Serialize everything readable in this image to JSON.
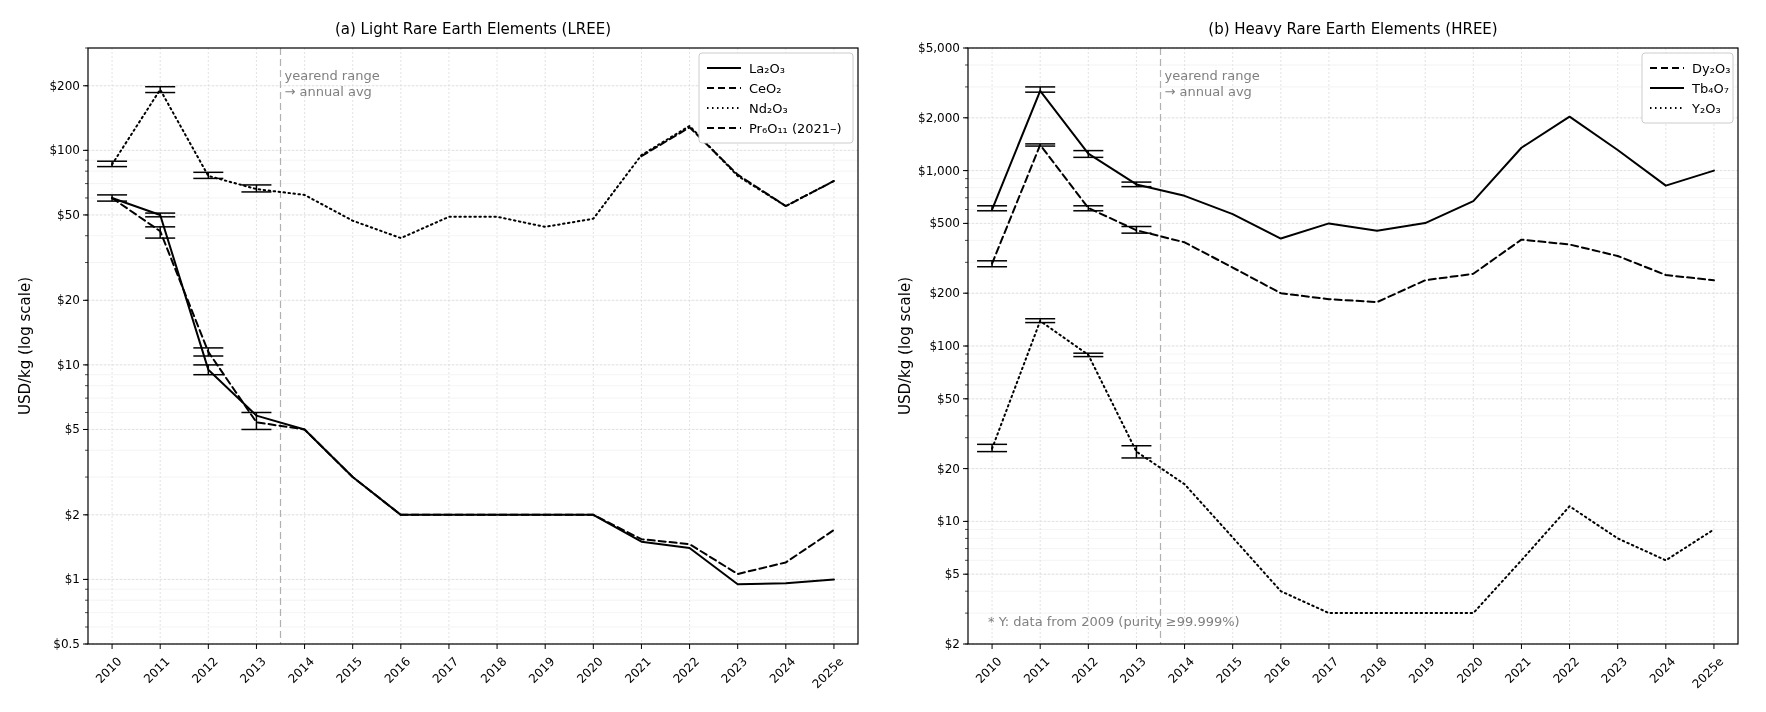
{
  "chart_data": [
    {
      "type": "line",
      "title": "(a) Light Rare Earth Elements (LREE)",
      "ylabel": "USD/kg (log scale)",
      "log": true,
      "grid": true,
      "legend": "top right",
      "x": [
        2010,
        2011,
        2012,
        2013,
        2014,
        2015,
        2016,
        2017,
        2018,
        2019,
        2020,
        2021,
        2022,
        2023,
        2024,
        2025
      ],
      "xlim": [
        2009.5,
        2025.5
      ],
      "xticks": [
        2010,
        2011,
        2012,
        2013,
        2014,
        2015,
        2016,
        2017,
        2018,
        2019,
        2020,
        2021,
        2022,
        2023,
        2024,
        {
          "value": 2025,
          "label": "2025e"
        }
      ],
      "ylim": [
        0.5,
        300
      ],
      "yticks": [
        {
          "value": 0.5,
          "label": "$0.5"
        },
        {
          "value": 1,
          "label": "$1"
        },
        {
          "value": 2,
          "label": "$2"
        },
        {
          "value": 5,
          "label": "$5"
        },
        {
          "value": 10,
          "label": "$10"
        },
        {
          "value": 20,
          "label": "$20"
        },
        {
          "value": 50,
          "label": "$50"
        },
        {
          "value": 100,
          "label": "$100"
        },
        {
          "value": 200,
          "label": "$200"
        }
      ],
      "ref_lines": [
        {
          "axis": "x",
          "value": 2013.5,
          "label": "yearend range\n→ annual avg",
          "color": "#b0b0b0",
          "line_style": "dashed"
        }
      ],
      "series": [
        {
          "name": "La₂O₃",
          "color": "#000000",
          "line_style": "solid",
          "values": [
            60,
            50,
            9.5,
            5.8,
            5,
            3,
            2,
            2,
            2,
            2,
            2,
            1.5,
            1.4,
            0.95,
            0.96,
            1.0
          ],
          "errors": [
            [
              58,
              62
            ],
            [
              49,
              51
            ],
            [
              9,
              10
            ],
            null,
            null,
            null,
            null,
            null,
            null,
            null,
            null,
            null,
            null,
            null,
            null,
            null
          ]
        },
        {
          "name": "CeO₂",
          "color": "#000000",
          "line_style": "dashed",
          "values": [
            60,
            42,
            11.5,
            5.4,
            5,
            3,
            2,
            2,
            2,
            2,
            2,
            1.54,
            1.46,
            1.06,
            1.2,
            1.7
          ],
          "errors": [
            null,
            [
              39,
              44
            ],
            [
              11,
              12
            ],
            [
              5,
              6
            ],
            null,
            null,
            null,
            null,
            null,
            null,
            null,
            null,
            null,
            null,
            null,
            null
          ]
        },
        {
          "name": "Nd₂O₃",
          "color": "#000000",
          "line_style": "dotted",
          "values": [
            86,
            192,
            76,
            66,
            62,
            47,
            39,
            49,
            49,
            44,
            48,
            95,
            130,
            76,
            55,
            72
          ],
          "errors": [
            [
              84,
              89
            ],
            [
              186,
              198
            ],
            [
              74,
              79
            ],
            [
              64,
              69
            ],
            null,
            null,
            null,
            null,
            null,
            null,
            null,
            null,
            null,
            null,
            null,
            null
          ]
        },
        {
          "name": "Pr₆O₁₁ (2021–)",
          "color": "#000000",
          "line_style": "dashed",
          "values": [
            null,
            null,
            null,
            null,
            null,
            null,
            null,
            null,
            null,
            null,
            null,
            94,
            128,
            77,
            55,
            72
          ]
        }
      ]
    },
    {
      "type": "line",
      "title": "(b) Heavy Rare Earth Elements (HREE)",
      "ylabel": "USD/kg (log scale)",
      "log": true,
      "grid": true,
      "legend": "top right",
      "x": [
        2010,
        2011,
        2012,
        2013,
        2014,
        2015,
        2016,
        2017,
        2018,
        2019,
        2020,
        2021,
        2022,
        2023,
        2024,
        2025
      ],
      "xlim": [
        2009.5,
        2025.5
      ],
      "xticks": [
        2010,
        2011,
        2012,
        2013,
        2014,
        2015,
        2016,
        2017,
        2018,
        2019,
        2020,
        2021,
        2022,
        2023,
        2024,
        {
          "value": 2025,
          "label": "2025e"
        }
      ],
      "ylim": [
        2,
        5000
      ],
      "yticks": [
        {
          "value": 2,
          "label": "$2"
        },
        {
          "value": 5,
          "label": "$5"
        },
        {
          "value": 10,
          "label": "$10"
        },
        {
          "value": 20,
          "label": "$20"
        },
        {
          "value": 50,
          "label": "$50"
        },
        {
          "value": 100,
          "label": "$100"
        },
        {
          "value": 200,
          "label": "$200"
        },
        {
          "value": 500,
          "label": "$500"
        },
        {
          "value": 1000,
          "label": "$1,000"
        },
        {
          "value": 2000,
          "label": "$2,000"
        },
        {
          "value": 5000,
          "label": "$5,000"
        }
      ],
      "ref_lines": [
        {
          "axis": "x",
          "value": 2013.5,
          "label": "yearend range\n→ annual avg",
          "color": "#b0b0b0",
          "line_style": "dashed"
        }
      ],
      "annotations": [
        "* Y: data from 2009 (purity ≥99.999%)"
      ],
      "series": [
        {
          "name": "Dy₂O₃",
          "color": "#000000",
          "line_style": "dashed",
          "values": [
            295,
            1400,
            612,
            457,
            390,
            280,
            200,
            185,
            178,
            237,
            258,
            404,
            379,
            326,
            254,
            237
          ],
          "errors": [
            [
              283,
              306
            ],
            [
              1380,
              1420
            ],
            [
              590,
              630
            ],
            [
              440,
              480
            ],
            null,
            null,
            null,
            null,
            null,
            null,
            null,
            null,
            null,
            null,
            null,
            null
          ]
        },
        {
          "name": "Tb₄O₇",
          "color": "#000000",
          "line_style": "solid",
          "values": [
            600,
            2850,
            1250,
            834,
            718,
            565,
            410,
            500,
            454,
            502,
            670,
            1350,
            2030,
            1310,
            821,
            1000
          ],
          "errors": [
            [
              590,
              630
            ],
            [
              2800,
              3000
            ],
            [
              1190,
              1300
            ],
            [
              810,
              860
            ],
            null,
            null,
            null,
            null,
            null,
            null,
            null,
            null,
            null,
            null,
            null,
            null
          ]
        },
        {
          "name": "Y₂O₃",
          "color": "#000000",
          "line_style": "dotted",
          "values": [
            26,
            139,
            89,
            25,
            16.3,
            8.1,
            4,
            3,
            3,
            3,
            3,
            6,
            12.2,
            8,
            6,
            9
          ],
          "errors": [
            [
              25,
              27.5
            ],
            [
              136,
              143
            ],
            [
              87,
              91
            ],
            [
              23,
              27
            ],
            null,
            null,
            null,
            null,
            null,
            null,
            null,
            null,
            null,
            null,
            null,
            null
          ]
        }
      ]
    }
  ]
}
